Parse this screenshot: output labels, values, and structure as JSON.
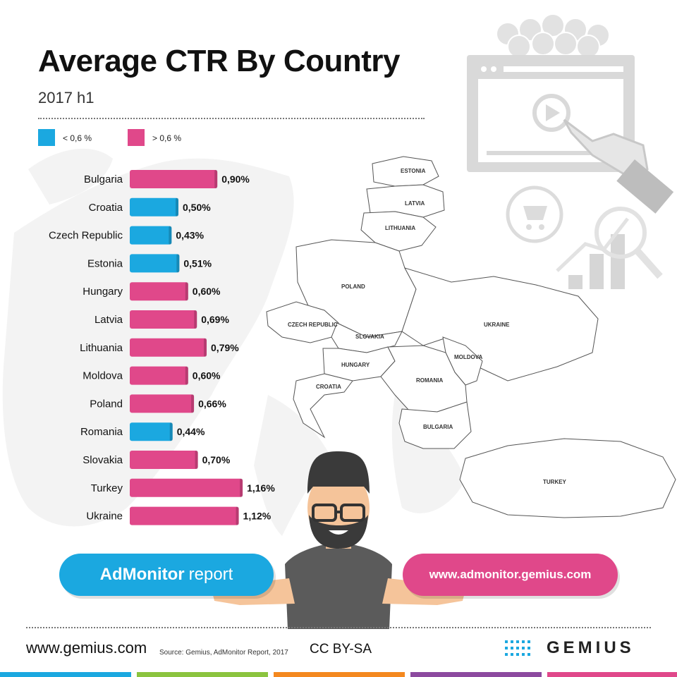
{
  "header": {
    "title": "Average CTR By Country",
    "subtitle": "2017 h1"
  },
  "legend": [
    {
      "label": "< 0,6 %",
      "color": "#1ba8e0"
    },
    {
      "label": "> 0,6 %",
      "color": "#e0488a"
    }
  ],
  "chart_data": {
    "type": "bar",
    "orientation": "horizontal",
    "categories": [
      "Bulgaria",
      "Croatia",
      "Czech Republic",
      "Estonia",
      "Hungary",
      "Latvia",
      "Lithuania",
      "Moldova",
      "Poland",
      "Romania",
      "Slovakia",
      "Turkey",
      "Ukraine"
    ],
    "values": [
      0.9,
      0.5,
      0.43,
      0.51,
      0.6,
      0.69,
      0.79,
      0.6,
      0.66,
      0.44,
      0.7,
      1.16,
      1.12
    ],
    "value_labels": [
      "0,90%",
      "0,50%",
      "0,43%",
      "0,51%",
      "0,60%",
      "0,69%",
      "0,79%",
      "0,60%",
      "0,66%",
      "0,44%",
      "0,70%",
      "1,16%",
      "1,12%"
    ],
    "groups": [
      "high",
      "low",
      "low",
      "low",
      "high",
      "high",
      "high",
      "high",
      "high",
      "low",
      "high",
      "high",
      "high"
    ],
    "group_colors": {
      "low": "#1ba8e0",
      "high": "#e0488a"
    }
  },
  "map_labels": [
    "ESTONIA",
    "LATVIA",
    "LITHUANIA",
    "POLAND",
    "CZECH REPUBLIC",
    "SLOVAKIA",
    "UKRAINE",
    "HUNGARY",
    "MOLDOVA",
    "CROATIA",
    "ROMANIA",
    "BULGARIA",
    "TURKEY"
  ],
  "buttons": {
    "report_bold": "AdMonitor",
    "report_rest": "report",
    "website": "www.admonitor.gemius.com"
  },
  "footer": {
    "site": "www.gemius.com",
    "source": "Source: Gemius, AdMonitor Report, 2017",
    "license": "CC BY-SA",
    "brand": "GEMIUS"
  },
  "illustration": {
    "icons": [
      "browser-video-icon",
      "coins-icon",
      "pointing-hand-icon",
      "cart-bubble-icon",
      "growth-chart-icon",
      "magnifier-icon",
      "character-icon"
    ]
  },
  "stripe_colors": [
    "#1ba8e0",
    "#8bc43f",
    "#f4881f",
    "#8c4a9f",
    "#e0488a"
  ]
}
